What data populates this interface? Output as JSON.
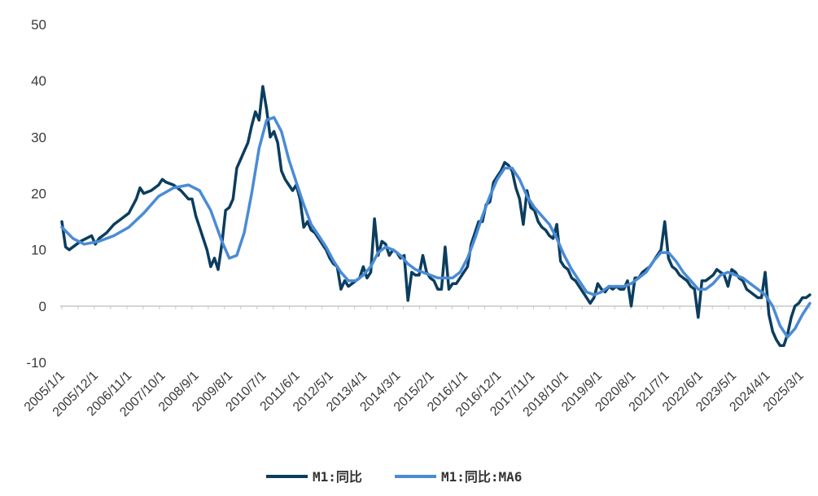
{
  "chart_data": {
    "type": "line",
    "title": "",
    "xlabel": "",
    "ylabel": "",
    "ylim": [
      -10,
      50
    ],
    "yticks": [
      50,
      40,
      30,
      20,
      10,
      0,
      -10
    ],
    "grid": false,
    "legend_position": "bottom-center",
    "x_tick_labels": [
      "2005/1/1",
      "2005/12/1",
      "2006/11/1",
      "2007/10/1",
      "2008/9/1",
      "2009/8/1",
      "2010/7/1",
      "2011/6/1",
      "2012/5/1",
      "2013/4/1",
      "2014/3/1",
      "2015/2/1",
      "2016/1/1",
      "2016/12/1",
      "2017/11/1",
      "2018/10/1",
      "2019/9/1",
      "2020/8/1",
      "2021/7/1",
      "2022/6/1",
      "2023/5/1",
      "2024/4/1",
      "2025/3/1"
    ],
    "series": [
      {
        "name": "M1:同比",
        "color": "#0b3d5e",
        "points": [
          [
            0,
            15
          ],
          [
            1,
            10.5
          ],
          [
            2,
            10
          ],
          [
            3,
            10.5
          ],
          [
            5,
            11.5
          ],
          [
            8,
            12.5
          ],
          [
            9,
            11
          ],
          [
            10,
            12
          ],
          [
            12,
            13
          ],
          [
            14,
            14.5
          ],
          [
            16,
            15.5
          ],
          [
            18,
            16.5
          ],
          [
            20,
            19
          ],
          [
            21,
            21
          ],
          [
            22,
            20
          ],
          [
            24,
            20.5
          ],
          [
            26,
            21.5
          ],
          [
            27,
            22.5
          ],
          [
            28,
            22
          ],
          [
            30,
            21.5
          ],
          [
            32,
            20.5
          ],
          [
            34,
            19
          ],
          [
            35,
            19
          ],
          [
            36,
            16
          ],
          [
            37,
            14
          ],
          [
            38,
            12
          ],
          [
            39,
            10
          ],
          [
            40,
            7
          ],
          [
            41,
            8.5
          ],
          [
            42,
            6.5
          ],
          [
            43,
            11
          ],
          [
            44,
            17
          ],
          [
            45,
            17.5
          ],
          [
            46,
            19
          ],
          [
            47,
            24.5
          ],
          [
            48,
            26
          ],
          [
            49,
            27.5
          ],
          [
            50,
            29
          ],
          [
            51,
            32
          ],
          [
            52,
            34.5
          ],
          [
            53,
            33
          ],
          [
            54,
            39
          ],
          [
            55,
            35
          ],
          [
            56,
            30
          ],
          [
            57,
            31
          ],
          [
            58,
            29
          ],
          [
            59,
            24
          ],
          [
            60,
            22.5
          ],
          [
            61,
            21.5
          ],
          [
            62,
            20.5
          ],
          [
            63,
            21.5
          ],
          [
            64,
            19
          ],
          [
            65,
            14
          ],
          [
            66,
            15
          ],
          [
            67,
            13.5
          ],
          [
            68,
            13
          ],
          [
            69,
            12
          ],
          [
            70,
            11
          ],
          [
            71,
            10
          ],
          [
            72,
            8.5
          ],
          [
            73,
            7.5
          ],
          [
            74,
            7
          ],
          [
            75,
            3
          ],
          [
            76,
            4.5
          ],
          [
            77,
            3.5
          ],
          [
            78,
            4
          ],
          [
            79,
            4.5
          ],
          [
            80,
            5
          ],
          [
            81,
            7
          ],
          [
            82,
            5
          ],
          [
            83,
            6
          ],
          [
            84,
            15.5
          ],
          [
            85,
            9
          ],
          [
            86,
            11.5
          ],
          [
            87,
            11
          ],
          [
            88,
            9
          ],
          [
            89,
            10
          ],
          [
            90,
            9.5
          ],
          [
            91,
            8.5
          ],
          [
            92,
            9
          ],
          [
            93,
            1
          ],
          [
            94,
            6
          ],
          [
            95,
            5.5
          ],
          [
            96,
            5.5
          ],
          [
            97,
            9
          ],
          [
            98,
            6
          ],
          [
            99,
            5
          ],
          [
            100,
            4.5
          ],
          [
            101,
            3
          ],
          [
            102,
            3
          ],
          [
            103,
            10.5
          ],
          [
            104,
            3
          ],
          [
            105,
            4
          ],
          [
            106,
            4
          ],
          [
            107,
            5
          ],
          [
            108,
            6
          ],
          [
            109,
            7
          ],
          [
            110,
            11
          ],
          [
            111,
            13
          ],
          [
            112,
            15
          ],
          [
            113,
            15
          ],
          [
            114,
            18
          ],
          [
            115,
            18.5
          ],
          [
            116,
            22
          ],
          [
            117,
            23
          ],
          [
            118,
            24
          ],
          [
            119,
            25.5
          ],
          [
            120,
            25
          ],
          [
            121,
            24
          ],
          [
            122,
            21
          ],
          [
            123,
            19
          ],
          [
            124,
            14.5
          ],
          [
            125,
            20.5
          ],
          [
            126,
            17.5
          ],
          [
            127,
            17
          ],
          [
            128,
            15
          ],
          [
            129,
            14
          ],
          [
            130,
            13.5
          ],
          [
            131,
            12.5
          ],
          [
            132,
            12
          ],
          [
            133,
            14.5
          ],
          [
            134,
            8
          ],
          [
            135,
            7
          ],
          [
            136,
            6.5
          ],
          [
            137,
            5
          ],
          [
            138,
            4.5
          ],
          [
            139,
            3.5
          ],
          [
            140,
            2.5
          ],
          [
            141,
            1.5
          ],
          [
            142,
            0.5
          ],
          [
            143,
            1.5
          ],
          [
            144,
            4
          ],
          [
            145,
            3
          ],
          [
            146,
            2.5
          ],
          [
            147,
            3.5
          ],
          [
            148,
            3
          ],
          [
            149,
            3.5
          ],
          [
            150,
            3
          ],
          [
            151,
            3
          ],
          [
            152,
            4.5
          ],
          [
            153,
            0
          ],
          [
            154,
            5
          ],
          [
            155,
            5
          ],
          [
            156,
            6
          ],
          [
            157,
            6.5
          ],
          [
            158,
            7
          ],
          [
            159,
            8
          ],
          [
            160,
            9
          ],
          [
            161,
            10
          ],
          [
            162,
            15
          ],
          [
            163,
            8.5
          ],
          [
            164,
            7
          ],
          [
            165,
            6.5
          ],
          [
            166,
            5.5
          ],
          [
            167,
            5
          ],
          [
            168,
            4.5
          ],
          [
            169,
            3.5
          ],
          [
            170,
            3
          ],
          [
            171,
            -2
          ],
          [
            172,
            4.5
          ],
          [
            173,
            4.5
          ],
          [
            174,
            5
          ],
          [
            175,
            5.5
          ],
          [
            176,
            6.5
          ],
          [
            177,
            6
          ],
          [
            178,
            5.5
          ],
          [
            179,
            3.5
          ],
          [
            180,
            6.5
          ],
          [
            181,
            6
          ],
          [
            182,
            5
          ],
          [
            183,
            4.5
          ],
          [
            184,
            3
          ],
          [
            185,
            2.5
          ],
          [
            186,
            2
          ],
          [
            187,
            1.5
          ],
          [
            188,
            1.5
          ],
          [
            189,
            6
          ],
          [
            190,
            -1.5
          ],
          [
            191,
            -4.5
          ],
          [
            192,
            -6
          ],
          [
            193,
            -7
          ],
          [
            194,
            -7
          ],
          [
            195,
            -5
          ],
          [
            196,
            -2
          ],
          [
            197,
            0
          ],
          [
            198,
            0.5
          ],
          [
            199,
            1.5
          ],
          [
            200,
            1.5
          ],
          [
            201,
            2
          ]
        ]
      },
      {
        "name": "M1:同比:MA6",
        "color": "#4a8bd6",
        "points": [
          [
            0,
            14
          ],
          [
            3,
            12
          ],
          [
            6,
            11
          ],
          [
            10,
            11.5
          ],
          [
            14,
            12.5
          ],
          [
            18,
            14
          ],
          [
            22,
            16.5
          ],
          [
            26,
            19.5
          ],
          [
            30,
            21
          ],
          [
            34,
            21.5
          ],
          [
            37,
            20.5
          ],
          [
            40,
            17
          ],
          [
            43,
            11.5
          ],
          [
            45,
            8.5
          ],
          [
            47,
            9
          ],
          [
            49,
            13
          ],
          [
            51,
            20
          ],
          [
            53,
            28
          ],
          [
            55,
            33
          ],
          [
            57,
            33.5
          ],
          [
            59,
            31
          ],
          [
            61,
            26
          ],
          [
            63,
            22
          ],
          [
            65,
            18
          ],
          [
            67,
            14.5
          ],
          [
            69,
            12.5
          ],
          [
            71,
            10.5
          ],
          [
            73,
            8
          ],
          [
            75,
            6
          ],
          [
            77,
            4.5
          ],
          [
            79,
            4.5
          ],
          [
            81,
            5.5
          ],
          [
            83,
            7
          ],
          [
            85,
            9.5
          ],
          [
            87,
            10.5
          ],
          [
            89,
            10
          ],
          [
            91,
            9
          ],
          [
            93,
            7.5
          ],
          [
            95,
            6.5
          ],
          [
            97,
            6
          ],
          [
            99,
            5.5
          ],
          [
            101,
            5
          ],
          [
            103,
            5
          ],
          [
            105,
            5
          ],
          [
            107,
            6
          ],
          [
            109,
            8.5
          ],
          [
            111,
            12
          ],
          [
            113,
            16
          ],
          [
            115,
            19.5
          ],
          [
            117,
            22.5
          ],
          [
            119,
            24.5
          ],
          [
            121,
            24.5
          ],
          [
            123,
            22.5
          ],
          [
            125,
            19.5
          ],
          [
            127,
            17.5
          ],
          [
            129,
            16
          ],
          [
            131,
            14.5
          ],
          [
            133,
            12
          ],
          [
            135,
            9
          ],
          [
            137,
            6.5
          ],
          [
            139,
            4.5
          ],
          [
            141,
            2.5
          ],
          [
            143,
            2
          ],
          [
            145,
            2.5
          ],
          [
            147,
            3.5
          ],
          [
            149,
            3.5
          ],
          [
            151,
            3.5
          ],
          [
            153,
            4
          ],
          [
            155,
            5
          ],
          [
            157,
            6
          ],
          [
            159,
            8
          ],
          [
            161,
            9.5
          ],
          [
            163,
            9.5
          ],
          [
            165,
            8
          ],
          [
            167,
            6
          ],
          [
            169,
            4.5
          ],
          [
            171,
            3
          ],
          [
            173,
            3
          ],
          [
            175,
            4
          ],
          [
            177,
            5.5
          ],
          [
            179,
            6
          ],
          [
            181,
            5.5
          ],
          [
            183,
            5
          ],
          [
            185,
            4
          ],
          [
            187,
            3
          ],
          [
            189,
            2
          ],
          [
            191,
            0
          ],
          [
            193,
            -3.5
          ],
          [
            195,
            -5.5
          ],
          [
            197,
            -4
          ],
          [
            199,
            -1.5
          ],
          [
            201,
            0.5
          ]
        ]
      }
    ]
  }
}
